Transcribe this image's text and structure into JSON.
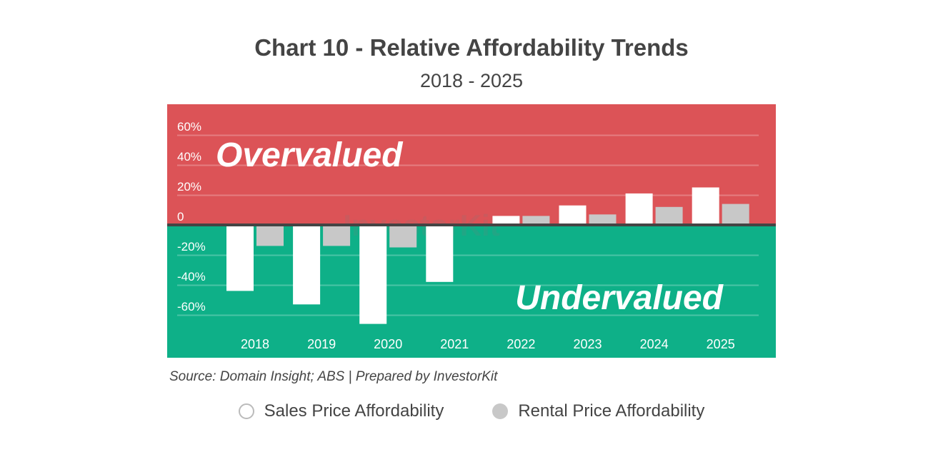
{
  "chart_data": {
    "type": "bar",
    "title": "Chart 10 - Relative Affordability Trends",
    "subtitle": "2018 - 2025",
    "categories": [
      "2018",
      "2019",
      "2020",
      "2021",
      "2022",
      "2023",
      "2024",
      "2025"
    ],
    "series": [
      {
        "name": "Sales Price Affordability",
        "color": "#ffffff",
        "values": [
          -44,
          -53,
          -66,
          -38,
          6,
          13,
          21,
          25
        ]
      },
      {
        "name": "Rental Price Affordability",
        "color": "#c8c8c8",
        "values": [
          -14,
          -14,
          -15,
          null,
          6,
          7,
          12,
          14
        ]
      }
    ],
    "ylim": [
      -80,
      80
    ],
    "yticks": [
      60,
      40,
      20,
      0,
      -20,
      -40,
      -60
    ],
    "ytick_labels": [
      "60%",
      "40%",
      "20%",
      "0",
      "-20%",
      "-40%",
      "-60%"
    ],
    "grid": true,
    "legend_position": "bottom",
    "annotations": {
      "top_region": "Overvalued",
      "bottom_region": "Undervalued"
    },
    "region_colors": {
      "over": "#dc5357",
      "under": "#0eb088"
    },
    "watermark": "InvestorKit",
    "source": "Source: Domain Insight; ABS | Prepared by InvestorKit"
  }
}
